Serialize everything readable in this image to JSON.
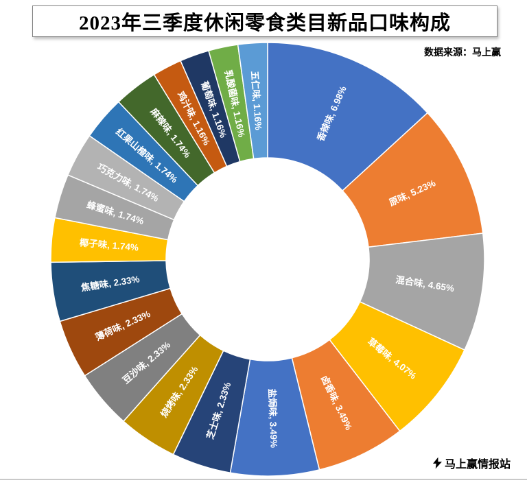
{
  "title": "2023年三季度休闲零食类目新品口味构成",
  "source": "数据来源：马上赢",
  "footer": {
    "brand": "马上赢情报站"
  },
  "chart_data": {
    "type": "pie",
    "subtype": "donut",
    "title": "2023年三季度休闲零食类目新品口味构成",
    "source": "数据来源：马上赢",
    "direction": "clockwise",
    "start_angle_deg": 0,
    "inner_radius_ratio": 0.47,
    "labels_position": "inside-radial",
    "label_format": "{name}, {value}%",
    "label_color": "#ffffff",
    "legend": "none",
    "unit": "%",
    "segments": [
      {
        "name": "香辣味",
        "value": 6.98,
        "color": "#4472C4"
      },
      {
        "name": "原味",
        "value": 5.23,
        "color": "#ED7D31"
      },
      {
        "name": "混合味",
        "value": 4.65,
        "color": "#A5A5A5"
      },
      {
        "name": "草莓味",
        "value": 4.07,
        "color": "#FFC000"
      },
      {
        "name": "卤香味",
        "value": 3.49,
        "color": "#ED7D31"
      },
      {
        "name": "盐焗味",
        "value": 3.49,
        "color": "#4472C4"
      },
      {
        "name": "芝士味",
        "value": 2.33,
        "color": "#264478"
      },
      {
        "name": "烧烤味",
        "value": 2.33,
        "color": "#BF8F00"
      },
      {
        "name": "豆沙味",
        "value": 2.33,
        "color": "#808080"
      },
      {
        "name": "薄荷味",
        "value": 2.33,
        "color": "#9E480E"
      },
      {
        "name": "焦糖味",
        "value": 2.33,
        "color": "#1F4E79"
      },
      {
        "name": "椰子味",
        "value": 1.74,
        "color": "#FFC000"
      },
      {
        "name": "蜂蜜味",
        "value": 1.74,
        "color": "#A5A5A5"
      },
      {
        "name": "巧克力味",
        "value": 1.74,
        "color": "#B3B3B3"
      },
      {
        "name": "红果山楂味",
        "value": 1.74,
        "color": "#2E75B6"
      },
      {
        "name": "麻辣味",
        "value": 1.74,
        "color": "#43682B"
      },
      {
        "name": "鸡汁味",
        "value": 1.16,
        "color": "#C55A11"
      },
      {
        "name": "葡萄味",
        "value": 1.16,
        "color": "#1F3864"
      },
      {
        "name": "乳酸菌味",
        "value": 1.16,
        "color": "#70AD47"
      },
      {
        "name": "五仁味",
        "value": 1.16,
        "color": "#5B9BD5"
      }
    ]
  }
}
